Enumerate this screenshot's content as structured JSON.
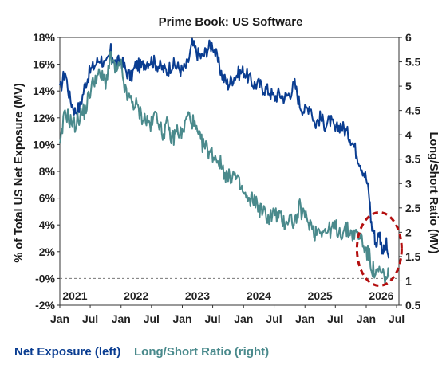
{
  "chart_data": {
    "type": "line",
    "title": "Prime Book: US Software",
    "ylabel_left": "% of Total US Net Exposure (MV)",
    "ylabel_right": "Long/Short Ratio (MV)",
    "ylim_left": [
      -2,
      18
    ],
    "ylim_right": [
      0.5,
      6
    ],
    "yticks_left": [
      "-2%",
      "-0%",
      "2%",
      "4%",
      "6%",
      "8%",
      "10%",
      "12%",
      "14%",
      "16%",
      "18%"
    ],
    "yticks_right": [
      "0.5",
      "1",
      "1.5",
      "2",
      "2.5",
      "3",
      "3.5",
      "4",
      "4.5",
      "5",
      "5.5",
      "6"
    ],
    "xlim": [
      "2021-01-01",
      "2026-07-15"
    ],
    "xticks_month": [
      "Jan",
      "Jul",
      "Jan",
      "Jul",
      "Jan",
      "Jul",
      "Jan",
      "Jul",
      "Jan",
      "Jul",
      "Jan",
      "Jul"
    ],
    "xticks_year": [
      "2021",
      "2022",
      "2023",
      "2024",
      "2025",
      "2026"
    ],
    "zero_line": {
      "value": 0,
      "style": "dashed"
    },
    "annotation": "dashed red ellipse highlighting early 2026 lows",
    "grid": false,
    "legend_position": "bottom",
    "series": [
      {
        "name": "Net Exposure (left)",
        "axis": "left",
        "color": "#0a3d91",
        "points": [
          [
            "2021-01-01",
            14.0
          ],
          [
            "2021-02-01",
            15.5
          ],
          [
            "2021-03-01",
            13.5
          ],
          [
            "2021-04-01",
            12.5
          ],
          [
            "2021-05-01",
            12.8
          ],
          [
            "2021-06-01",
            14.5
          ],
          [
            "2021-07-01",
            15.5
          ],
          [
            "2021-08-01",
            16.0
          ],
          [
            "2021-09-01",
            16.5
          ],
          [
            "2021-10-01",
            15.8
          ],
          [
            "2021-11-01",
            17.0
          ],
          [
            "2021-12-01",
            16.0
          ],
          [
            "2022-01-01",
            16.3
          ],
          [
            "2022-02-01",
            15.5
          ],
          [
            "2022-03-01",
            15.0
          ],
          [
            "2022-04-01",
            16.0
          ],
          [
            "2022-05-01",
            15.8
          ],
          [
            "2022-06-01",
            16.2
          ],
          [
            "2022-07-01",
            16.3
          ],
          [
            "2022-08-01",
            16.0
          ],
          [
            "2022-09-01",
            15.7
          ],
          [
            "2022-10-01",
            15.5
          ],
          [
            "2022-11-01",
            16.0
          ],
          [
            "2022-12-01",
            15.8
          ],
          [
            "2023-01-01",
            15.5
          ],
          [
            "2023-02-01",
            16.0
          ],
          [
            "2023-03-01",
            17.5
          ],
          [
            "2023-04-01",
            16.8
          ],
          [
            "2023-05-01",
            16.5
          ],
          [
            "2023-06-01",
            17.2
          ],
          [
            "2023-07-01",
            17.5
          ],
          [
            "2023-08-01",
            16.2
          ],
          [
            "2023-09-01",
            15.0
          ],
          [
            "2023-10-01",
            14.5
          ],
          [
            "2023-11-01",
            15.0
          ],
          [
            "2023-12-01",
            15.3
          ],
          [
            "2024-01-01",
            15.5
          ],
          [
            "2024-02-01",
            15.0
          ],
          [
            "2024-03-01",
            14.5
          ],
          [
            "2024-04-01",
            14.5
          ],
          [
            "2024-05-01",
            14.2
          ],
          [
            "2024-06-01",
            14.0
          ],
          [
            "2024-07-01",
            13.5
          ],
          [
            "2024-08-01",
            13.8
          ],
          [
            "2024-09-01",
            13.5
          ],
          [
            "2024-10-01",
            13.8
          ],
          [
            "2024-11-01",
            14.5
          ],
          [
            "2024-12-01",
            13.0
          ],
          [
            "2025-01-01",
            12.5
          ],
          [
            "2025-02-01",
            13.0
          ],
          [
            "2025-03-01",
            11.5
          ],
          [
            "2025-04-01",
            12.0
          ],
          [
            "2025-05-01",
            11.5
          ],
          [
            "2025-06-01",
            11.8
          ],
          [
            "2025-07-01",
            11.0
          ],
          [
            "2025-08-01",
            11.5
          ],
          [
            "2025-09-01",
            11.0
          ],
          [
            "2025-10-01",
            10.5
          ],
          [
            "2025-11-01",
            9.5
          ],
          [
            "2025-12-01",
            8.5
          ],
          [
            "2026-01-01",
            7.5
          ],
          [
            "2026-01-20",
            6.0
          ],
          [
            "2026-02-01",
            4.0
          ],
          [
            "2026-02-15",
            3.5
          ],
          [
            "2026-03-01",
            2.5
          ],
          [
            "2026-03-20",
            3.5
          ],
          [
            "2026-04-01",
            2.5
          ],
          [
            "2026-04-15",
            2.0
          ],
          [
            "2026-05-01",
            2.5
          ],
          [
            "2026-05-15",
            1.5
          ]
        ]
      },
      {
        "name": "Long/Short Ratio (right)",
        "axis": "right",
        "color": "#4a8a8c",
        "points": [
          [
            "2021-01-01",
            3.7
          ],
          [
            "2021-02-01",
            4.5
          ],
          [
            "2021-03-01",
            4.3
          ],
          [
            "2021-04-01",
            4.2
          ],
          [
            "2021-05-01",
            4.4
          ],
          [
            "2021-06-01",
            4.5
          ],
          [
            "2021-07-01",
            4.9
          ],
          [
            "2021-08-01",
            5.2
          ],
          [
            "2021-09-01",
            5.2
          ],
          [
            "2021-10-01",
            5.1
          ],
          [
            "2021-11-01",
            5.6
          ],
          [
            "2021-12-01",
            5.3
          ],
          [
            "2022-01-01",
            5.4
          ],
          [
            "2022-02-01",
            4.8
          ],
          [
            "2022-03-01",
            4.7
          ],
          [
            "2022-04-01",
            4.6
          ],
          [
            "2022-05-01",
            4.4
          ],
          [
            "2022-06-01",
            4.3
          ],
          [
            "2022-07-01",
            4.2
          ],
          [
            "2022-08-01",
            4.5
          ],
          [
            "2022-09-01",
            4.0
          ],
          [
            "2022-10-01",
            4.2
          ],
          [
            "2022-11-01",
            3.9
          ],
          [
            "2022-12-01",
            4.1
          ],
          [
            "2023-01-01",
            4.0
          ],
          [
            "2023-02-01",
            4.4
          ],
          [
            "2023-03-01",
            4.3
          ],
          [
            "2023-04-01",
            4.0
          ],
          [
            "2023-05-01",
            3.8
          ],
          [
            "2023-06-01",
            3.7
          ],
          [
            "2023-07-01",
            3.6
          ],
          [
            "2023-08-01",
            3.5
          ],
          [
            "2023-09-01",
            3.3
          ],
          [
            "2023-10-01",
            3.1
          ],
          [
            "2023-11-01",
            3.2
          ],
          [
            "2023-12-01",
            3.0
          ],
          [
            "2024-01-01",
            2.8
          ],
          [
            "2024-02-01",
            2.6
          ],
          [
            "2024-03-01",
            2.7
          ],
          [
            "2024-04-01",
            2.5
          ],
          [
            "2024-05-01",
            2.4
          ],
          [
            "2024-06-01",
            2.3
          ],
          [
            "2024-07-01",
            2.4
          ],
          [
            "2024-08-01",
            2.3
          ],
          [
            "2024-09-01",
            2.2
          ],
          [
            "2024-10-01",
            2.3
          ],
          [
            "2024-11-01",
            2.2
          ],
          [
            "2024-12-01",
            2.5
          ],
          [
            "2025-01-01",
            2.3
          ],
          [
            "2025-02-01",
            2.2
          ],
          [
            "2025-03-01",
            2.0
          ],
          [
            "2025-04-01",
            2.1
          ],
          [
            "2025-05-01",
            2.0
          ],
          [
            "2025-06-01",
            2.05
          ],
          [
            "2025-07-01",
            2.1
          ],
          [
            "2025-08-01",
            2.0
          ],
          [
            "2025-09-01",
            2.05
          ],
          [
            "2025-10-01",
            2.0
          ],
          [
            "2025-11-01",
            1.95
          ],
          [
            "2025-12-01",
            1.9
          ],
          [
            "2026-01-01",
            1.6
          ],
          [
            "2026-01-20",
            1.5
          ],
          [
            "2026-02-01",
            1.3
          ],
          [
            "2026-02-15",
            1.2
          ],
          [
            "2026-03-01",
            1.1
          ],
          [
            "2026-03-20",
            1.2
          ],
          [
            "2026-04-01",
            1.15
          ],
          [
            "2026-04-15",
            1.1
          ],
          [
            "2026-05-01",
            1.05
          ],
          [
            "2026-05-15",
            1.1
          ]
        ]
      }
    ]
  }
}
